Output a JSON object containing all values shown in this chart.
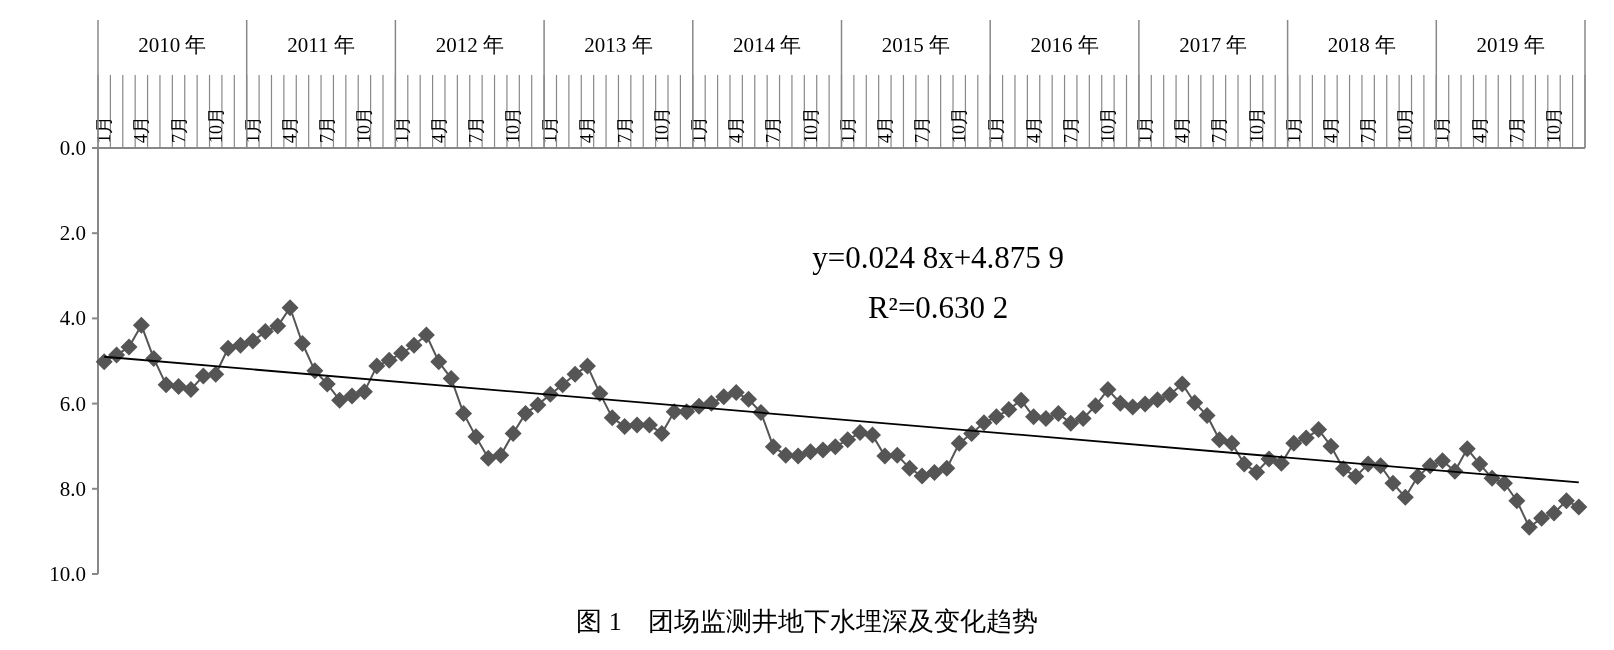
{
  "chart_data": {
    "type": "line",
    "title": "图 1　团场监测井地下水埋深及变化趋势",
    "categories": [
      "1月",
      null,
      null,
      "4月",
      null,
      null,
      "7月",
      null,
      null,
      "10月",
      null,
      null,
      "1月",
      null,
      null,
      "4月",
      null,
      null,
      "7月",
      null,
      null,
      "10月",
      null,
      null,
      "1月",
      null,
      null,
      "4月",
      null,
      null,
      "7月",
      null,
      null,
      "10月",
      null,
      null,
      "1月",
      null,
      null,
      "4月",
      null,
      null,
      "7月",
      null,
      null,
      "10月",
      null,
      null,
      "1月",
      null,
      null,
      "4月",
      null,
      null,
      "7月",
      null,
      null,
      "10月",
      null,
      null,
      "1月",
      null,
      null,
      "4月",
      null,
      null,
      "7月",
      null,
      null,
      "10月",
      null,
      null,
      "1月",
      null,
      null,
      "4月",
      null,
      null,
      "7月",
      null,
      null,
      "10月",
      null,
      null,
      "1月",
      null,
      null,
      "4月",
      null,
      null,
      "7月",
      null,
      null,
      "10月",
      null,
      null,
      "1月",
      null,
      null,
      "4月",
      null,
      null,
      "7月",
      null,
      null,
      "10月",
      null,
      null,
      "1月",
      null,
      null,
      "4月",
      null,
      null,
      "7月",
      null,
      null,
      "10月",
      null,
      null
    ],
    "series": [
      {
        "color": "#555555",
        "marker": "diamond",
        "values": [
          5.02,
          4.86,
          4.67,
          4.16,
          4.94,
          5.56,
          5.6,
          5.67,
          5.35,
          5.31,
          4.7,
          4.63,
          4.53,
          4.31,
          4.18,
          3.75,
          4.59,
          5.23,
          5.54,
          5.92,
          5.82,
          5.72,
          5.12,
          4.98,
          4.82,
          4.63,
          4.39,
          5.02,
          5.41,
          6.23,
          6.78,
          7.28,
          7.21,
          6.7,
          6.23,
          6.03,
          5.78,
          5.56,
          5.31,
          5.12,
          5.76,
          6.33,
          6.54,
          6.5,
          6.5,
          6.7,
          6.19,
          6.19,
          6.06,
          5.99,
          5.84,
          5.74,
          5.9,
          6.21,
          7.01,
          7.21,
          7.23,
          7.13,
          7.09,
          7.01,
          6.85,
          6.68,
          6.74,
          7.23,
          7.21,
          7.52,
          7.7,
          7.62,
          7.52,
          6.93,
          6.7,
          6.45,
          6.31,
          6.14,
          5.92,
          6.31,
          6.35,
          6.23,
          6.46,
          6.35,
          6.05,
          5.67,
          5.99,
          6.08,
          6.01,
          5.91,
          5.79,
          5.54,
          5.98,
          6.28,
          6.85,
          6.93,
          7.42,
          7.61,
          7.3,
          7.4,
          6.93,
          6.81,
          6.61,
          7.0,
          7.53,
          7.71,
          7.42,
          7.46,
          7.87,
          8.2,
          7.71,
          7.46,
          7.34,
          7.59,
          7.06,
          7.42,
          7.75,
          7.87,
          8.28,
          8.9,
          8.69,
          8.57,
          8.28,
          8.43
        ]
      },
      {
        "type": "line",
        "color": "#000000",
        "values": [
          4.9,
          null,
          null,
          null,
          null,
          null,
          null,
          null,
          null,
          null,
          null,
          null,
          null,
          null,
          null,
          null,
          null,
          null,
          null,
          null,
          null,
          null,
          null,
          null,
          null,
          null,
          null,
          null,
          null,
          null,
          null,
          null,
          null,
          null,
          null,
          null,
          null,
          null,
          null,
          null,
          null,
          null,
          null,
          null,
          null,
          null,
          null,
          null,
          null,
          null,
          null,
          null,
          null,
          null,
          null,
          null,
          null,
          null,
          null,
          null,
          null,
          null,
          null,
          null,
          null,
          null,
          null,
          null,
          null,
          null,
          null,
          null,
          null,
          null,
          null,
          null,
          null,
          null,
          null,
          null,
          null,
          null,
          null,
          null,
          null,
          null,
          null,
          null,
          null,
          null,
          null,
          null,
          null,
          null,
          null,
          null,
          null,
          null,
          null,
          null,
          null,
          null,
          null,
          null,
          null,
          null,
          null,
          null,
          null,
          null,
          null,
          null,
          null,
          null,
          null,
          null,
          null,
          null,
          null,
          7.85
        ]
      }
    ],
    "ylim": [
      10,
      0
    ],
    "yticks": [
      {
        "value": 0,
        "label": "0.0"
      },
      {
        "value": 2,
        "label": "2.0"
      },
      {
        "value": 4,
        "label": "4.0"
      },
      {
        "value": 6,
        "label": "6.0"
      },
      {
        "value": 8,
        "label": "8.0"
      },
      {
        "value": 10,
        "label": "10.0"
      }
    ],
    "annotations": [
      "2010 年",
      "2011 年",
      "2012 年",
      "2013 年",
      "2014 年",
      "2015 年",
      "2016 年",
      "2017 年",
      "2018 年",
      "2019 年",
      "y=0.024 8x+4.875 9",
      "R²=0.630 2"
    ]
  }
}
